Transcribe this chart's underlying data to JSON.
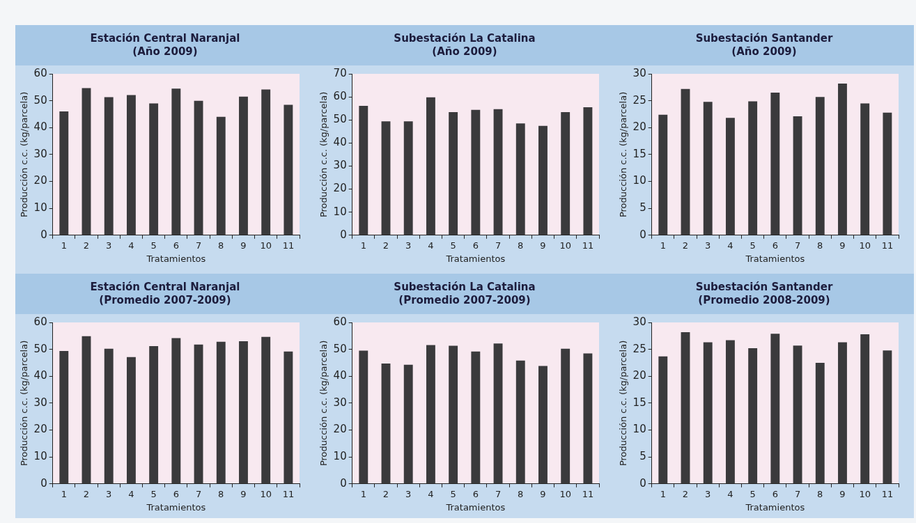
{
  "chart_data": [
    {
      "type": "bar",
      "title": "Estación Central Naranjal\n(Año 2009)",
      "xlabel": "Tratamientos",
      "ylabel": "Producción c.c. (kg/parcela)",
      "categories": [
        "1",
        "2",
        "3",
        "4",
        "5",
        "6",
        "7",
        "8",
        "9",
        "10",
        "11"
      ],
      "values": [
        46,
        54.7,
        51.3,
        52.1,
        49,
        54.5,
        50,
        44,
        51.5,
        54.2,
        48.5
      ],
      "color": "#3a3a3c",
      "ylim": [
        0,
        60
      ],
      "yticks": [
        0,
        10,
        20,
        30,
        40,
        50,
        60
      ],
      "grid": false
    },
    {
      "type": "bar",
      "title": "Subestación La Catalina\n(Año 2009)",
      "xlabel": "Tratamientos",
      "ylabel": "Producción c.c. (kg/parcela)",
      "categories": [
        "1",
        "2",
        "3",
        "4",
        "5",
        "6",
        "7",
        "8",
        "9",
        "10",
        "11"
      ],
      "values": [
        56.1,
        49.4,
        49.4,
        59.8,
        53.4,
        54.4,
        54.7,
        48.5,
        47.4,
        53.4,
        55.5
      ],
      "color": "#3a3a3c",
      "ylim": [
        0,
        70
      ],
      "yticks": [
        0,
        10,
        20,
        30,
        40,
        50,
        60,
        70
      ],
      "grid": false
    },
    {
      "type": "bar",
      "title": "Subestación Santander\n(Año 2009)",
      "xlabel": "Tratamientos",
      "ylabel": "Producción c.c. (kg/parcela)",
      "categories": [
        "1",
        "2",
        "3",
        "4",
        "5",
        "6",
        "7",
        "8",
        "9",
        "10",
        "11"
      ],
      "values": [
        22.4,
        27.2,
        24.8,
        21.8,
        24.9,
        26.5,
        22.1,
        25.7,
        28.2,
        24.5,
        22.8
      ],
      "color": "#3a3a3c",
      "ylim": [
        0,
        30
      ],
      "yticks": [
        0,
        5,
        10,
        15,
        20,
        25,
        30
      ],
      "grid": false
    },
    {
      "type": "bar",
      "title": "Estación Central Naranjal\n(Promedio 2007-2009)",
      "xlabel": "Tratamientos",
      "ylabel": "Producción c.c. (kg/parcela)",
      "categories": [
        "1",
        "2",
        "3",
        "4",
        "5",
        "6",
        "7",
        "8",
        "9",
        "10",
        "11"
      ],
      "values": [
        49.4,
        54.9,
        50.2,
        47.1,
        51.2,
        54.2,
        51.8,
        52.8,
        53,
        54.6,
        49.2
      ],
      "color": "#3a3a3c",
      "ylim": [
        0,
        60
      ],
      "yticks": [
        0,
        10,
        20,
        30,
        40,
        50,
        60
      ],
      "grid": false
    },
    {
      "type": "bar",
      "title": "Subestación La Catalina\n(Promedio 2007-2009)",
      "xlabel": "Tratamientos",
      "ylabel": "Producción c.c. (kg/parcela)",
      "categories": [
        "1",
        "2",
        "3",
        "4",
        "5",
        "6",
        "7",
        "8",
        "9",
        "10",
        "11"
      ],
      "values": [
        49.5,
        44.7,
        44.3,
        51.6,
        51.3,
        49.2,
        52.2,
        45.8,
        43.8,
        50.2,
        48.5
      ],
      "color": "#3a3a3c",
      "ylim": [
        0,
        60
      ],
      "yticks": [
        0,
        10,
        20,
        30,
        40,
        50,
        60
      ],
      "grid": false
    },
    {
      "type": "bar",
      "title": "Subestación Santander\n(Promedio 2008-2009)",
      "xlabel": "Tratamientos",
      "ylabel": "Producción c.c. (kg/parcela)",
      "categories": [
        "1",
        "2",
        "3",
        "4",
        "5",
        "6",
        "7",
        "8",
        "9",
        "10",
        "11"
      ],
      "values": [
        23.7,
        28.2,
        26.3,
        26.7,
        25.2,
        27.9,
        25.7,
        22.5,
        26.3,
        27.8,
        24.8
      ],
      "color": "#3a3a3c",
      "ylim": [
        0,
        30
      ],
      "yticks": [
        0,
        5,
        10,
        15,
        20,
        25,
        30
      ],
      "grid": false
    }
  ]
}
